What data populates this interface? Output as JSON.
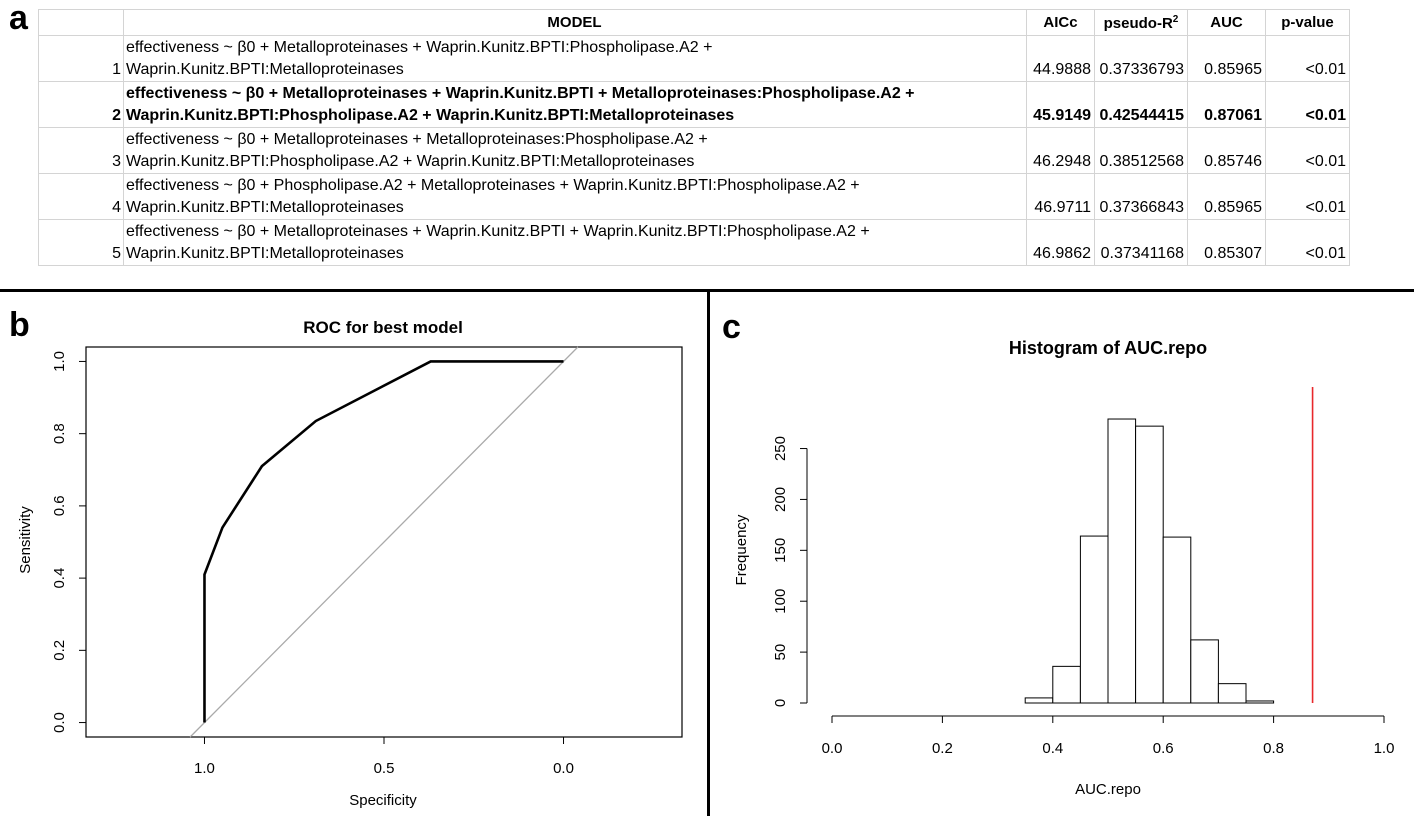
{
  "panel_letters": {
    "a": "a",
    "b": "b",
    "c": "c"
  },
  "table": {
    "headers": {
      "model": "MODEL",
      "aicc": "AICc",
      "pseudo_r2_main": "pseudo-R",
      "pseudo_r2_sup": "2",
      "auc": "AUC",
      "pvalue": "p-value"
    },
    "rows": [
      {
        "index": "1",
        "line1": "effectiveness ~ β0 + Metalloproteinases + Waprin.Kunitz.BPTI:Phospholipase.A2 +",
        "line2": "Waprin.Kunitz.BPTI:Metalloproteinases",
        "aicc": "44.9888",
        "pseudo_r2": "0.37336793",
        "auc": "0.85965",
        "pvalue": "<0.01",
        "bold": false
      },
      {
        "index": "2",
        "line1": "effectiveness ~ β0 + Metalloproteinases + Waprin.Kunitz.BPTI + Metalloproteinases:Phospholipase.A2 +",
        "line2": "Waprin.Kunitz.BPTI:Phospholipase.A2 + Waprin.Kunitz.BPTI:Metalloproteinases",
        "aicc": "45.9149",
        "pseudo_r2": "0.42544415",
        "auc": "0.87061",
        "pvalue": "<0.01",
        "bold": true
      },
      {
        "index": "3",
        "line1": "effectiveness ~ β0 + Metalloproteinases + Metalloproteinases:Phospholipase.A2 +",
        "line2": "Waprin.Kunitz.BPTI:Phospholipase.A2 + Waprin.Kunitz.BPTI:Metalloproteinases",
        "aicc": "46.2948",
        "pseudo_r2": "0.38512568",
        "auc": "0.85746",
        "pvalue": "<0.01",
        "bold": false
      },
      {
        "index": "4",
        "line1": "effectiveness ~ β0 + Phospholipase.A2 + Metalloproteinases + Waprin.Kunitz.BPTI:Phospholipase.A2 +",
        "line2": "Waprin.Kunitz.BPTI:Metalloproteinases",
        "aicc": "46.9711",
        "pseudo_r2": "0.37366843",
        "auc": "0.85965",
        "pvalue": "<0.01",
        "bold": false
      },
      {
        "index": "5",
        "line1": "effectiveness ~ β0 + Metalloproteinases + Waprin.Kunitz.BPTI + Waprin.Kunitz.BPTI:Phospholipase.A2 +",
        "line2": "Waprin.Kunitz.BPTI:Metalloproteinases",
        "aicc": "46.9862",
        "pseudo_r2": "0.37341168",
        "auc": "0.85307",
        "pvalue": "<0.01",
        "bold": false
      }
    ]
  },
  "chart_data": [
    {
      "type": "line",
      "title": "ROC for best model",
      "xlabel": "Specificity",
      "ylabel": "Sensitivity",
      "x_reversed": true,
      "xlim": [
        1.33,
        -0.33
      ],
      "ylim": [
        -0.04,
        1.04
      ],
      "xticks": [
        1.0,
        0.5,
        0.0
      ],
      "xtick_labels": [
        "1.0",
        "0.5",
        "0.0"
      ],
      "yticks": [
        0.0,
        0.2,
        0.4,
        0.6,
        0.8,
        1.0
      ],
      "ytick_labels": [
        "0.0",
        "0.2",
        "0.4",
        "0.6",
        "0.8",
        "1.0"
      ],
      "series": [
        {
          "color": "#000000",
          "x": [
            1.0,
            1.0,
            0.95,
            0.84,
            0.69,
            0.37,
            0.0
          ],
          "y": [
            0.0,
            0.41,
            0.54,
            0.71,
            0.835,
            1.0,
            1.0
          ]
        }
      ],
      "reference_line": {
        "color": "#aaaaaa",
        "points": [
          [
            1.04,
            -0.04
          ],
          [
            -0.04,
            1.04
          ]
        ]
      }
    },
    {
      "type": "bar",
      "title": "Histogram of AUC.repo",
      "xlabel": "AUC.repo",
      "ylabel": "Frequency",
      "xlim": [
        0.0,
        1.0
      ],
      "ylim": [
        0,
        280
      ],
      "xticks": [
        0.0,
        0.2,
        0.4,
        0.6,
        0.8,
        1.0
      ],
      "xtick_labels": [
        "0.0",
        "0.2",
        "0.4",
        "0.6",
        "0.8",
        "1.0"
      ],
      "yticks": [
        0,
        50,
        100,
        150,
        200,
        250
      ],
      "ytick_labels": [
        "0",
        "50",
        "100",
        "150",
        "200",
        "250"
      ],
      "bin_edges": [
        0.35,
        0.4,
        0.45,
        0.5,
        0.55,
        0.6,
        0.65,
        0.7,
        0.75,
        0.8
      ],
      "values": [
        5,
        36,
        164,
        279,
        272,
        163,
        62,
        19,
        2
      ],
      "reference_line": {
        "x": 0.87061,
        "color": "#e8282b"
      }
    }
  ]
}
